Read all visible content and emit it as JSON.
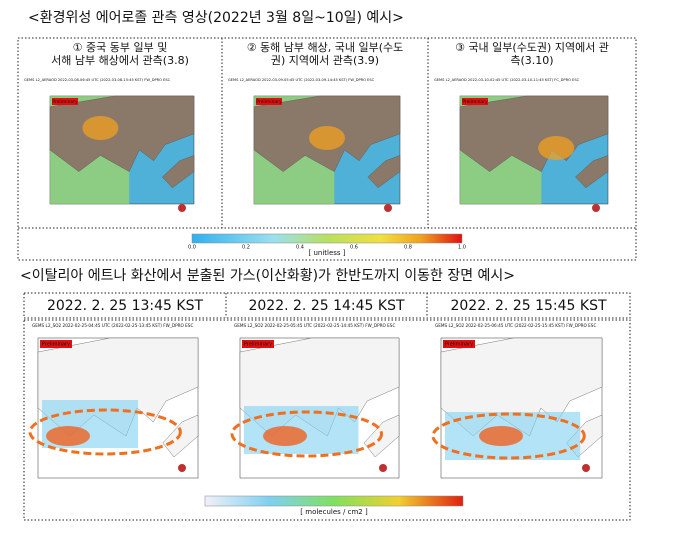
{
  "section1": {
    "title": "<환경위성 에어로졸 관측 영상(2022년 3월 8일~10일) 예시>",
    "panels": [
      {
        "caption": [
          "① 중국 동부 일부 및",
          "서해 남부 해상에서 관측(3.8)"
        ],
        "header": "GEMS L2_AERAOD 2022-03-08-06:45 UTC (2022-03-08-15:45 KST) FW_DPRO ESC",
        "badge": "Preliminary"
      },
      {
        "caption": [
          "② 동해 남부 해상, 국내 일부(수도",
          "권) 지역에서 관측(3.9)"
        ],
        "header": "GEMS L2_AERAOD 2022-03-09-05:45 UTC (2022-03-09-14:45 KST) FW_DPRO ESC",
        "badge": "Preliminary"
      },
      {
        "caption": [
          "③ 국내 일부(수도권) 지역에서 관",
          "측(3.10)"
        ],
        "header": "GEMS L2_AERAOD 2022-03-10-02:45 UTC (2022-03-10-11:45 KST) FC_DPRO ESC",
        "badge": "Preliminary"
      }
    ],
    "colorbar": {
      "ticks": [
        "0.0",
        "0.2",
        "0.4",
        "0.6",
        "0.8",
        "1.0"
      ],
      "unit": "[ unitless ]"
    }
  },
  "section2": {
    "title": "<이탈리아 에트나 화산에서 분출된 가스(이산화황)가 한반도까지 이동한 장면 예시>",
    "panels": [
      {
        "time": "2022. 2. 25 13:45 KST",
        "header": "GEMS L2_SO2 2022-02-25-04:45 UTC (2022-02-25-13:45 KST) FW_DPRO ESC",
        "badge": "Preliminary"
      },
      {
        "time": "2022. 2. 25 14:45 KST",
        "header": "GEMS L2_SO2 2022-02-25-05:45 UTC (2022-02-25-14:45 KST) FW_DPRO ESC",
        "badge": "Preliminary"
      },
      {
        "time": "2022. 2. 25 15:45 KST",
        "header": "GEMS L2_SO2 2022-02-25-06:45 UTC (2022-02-25-15:45 KST) FW_DPRO ESC",
        "badge": "Preliminary"
      }
    ],
    "colorbar": {
      "unit": "[ molecules / cm2 ]"
    }
  }
}
